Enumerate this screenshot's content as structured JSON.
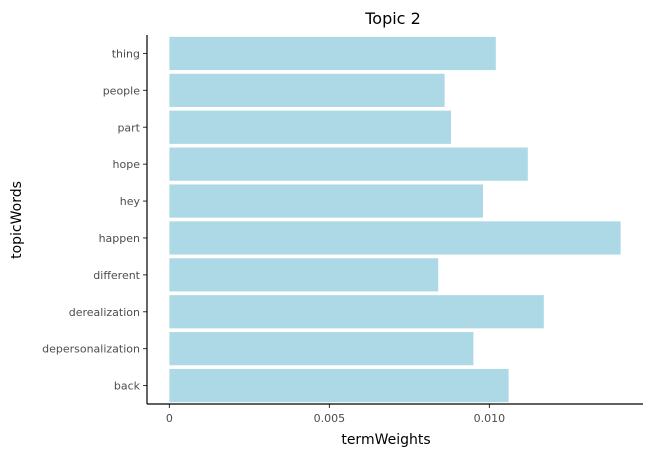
{
  "chart_data": {
    "type": "bar",
    "orientation": "horizontal",
    "title": "Topic 2",
    "xlabel": "termWeights",
    "ylabel": "topicWords",
    "categories": [
      "thing",
      "people",
      "part",
      "hope",
      "hey",
      "happen",
      "different",
      "derealization",
      "depersonalization",
      "back"
    ],
    "values": [
      0.0102,
      0.0086,
      0.0088,
      0.0112,
      0.0098,
      0.0141,
      0.0084,
      0.0117,
      0.0095,
      0.0106
    ],
    "xlim": [
      -0.0007,
      0.0148
    ],
    "xticks": [
      0,
      0.005,
      0.01
    ],
    "xtick_labels": [
      "0",
      "0.005",
      "0.010"
    ],
    "grid": false,
    "bar_color": "#add8e6"
  }
}
